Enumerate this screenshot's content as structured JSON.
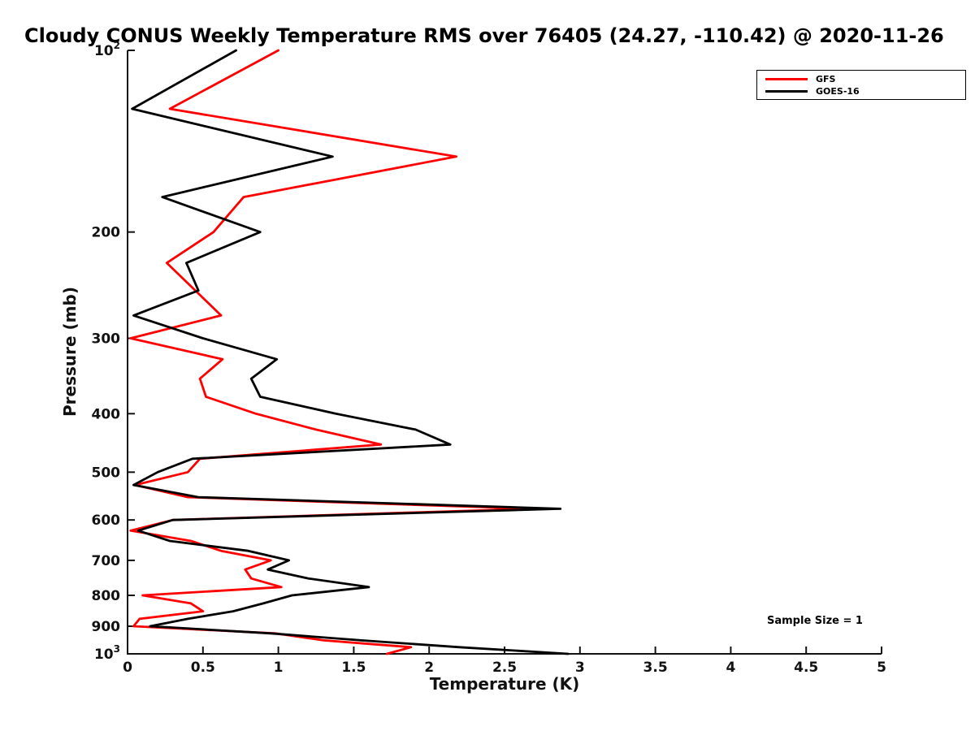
{
  "chart_data": {
    "type": "line",
    "title": "Cloudy CONUS Weekly Temperature RMS over 76405 (24.27, -110.42) @ 2020-11-26",
    "xlabel": "Temperature (K)",
    "ylabel": "Pressure (mb)",
    "xlim": [
      0,
      5
    ],
    "ylim": [
      100,
      1000
    ],
    "yscale": "log",
    "y_axis_direction": "reversed (pressure increases downward)",
    "grid": false,
    "legend_position": "northeast",
    "annotation": "Sample Size = 1",
    "x_ticks": [
      0,
      0.5,
      1,
      1.5,
      2,
      2.5,
      3,
      3.5,
      4,
      4.5,
      5
    ],
    "x_tick_labels": [
      "0",
      "0.5",
      "1",
      "1.5",
      "2",
      "2.5",
      "3",
      "3.5",
      "4",
      "4.5",
      "5"
    ],
    "y_ticks": [
      100,
      200,
      300,
      400,
      500,
      600,
      700,
      800,
      900,
      1000
    ],
    "y_tick_labels": [
      "10^2",
      "200",
      "300",
      "400",
      "500",
      "600",
      "700",
      "800",
      "900",
      "10^3"
    ],
    "pressure_levels_mb": [
      100,
      125,
      150,
      175,
      200,
      225,
      250,
      275,
      300,
      325,
      350,
      375,
      400,
      425,
      450,
      475,
      500,
      525,
      550,
      575,
      600,
      625,
      650,
      675,
      700,
      725,
      750,
      775,
      800,
      825,
      850,
      875,
      900,
      925,
      950,
      975,
      1000
    ],
    "series": [
      {
        "name": "GFS",
        "color": "#ff0000",
        "values": [
          1.0,
          0.28,
          2.18,
          0.77,
          0.57,
          0.26,
          0.45,
          0.62,
          0.02,
          0.63,
          0.48,
          0.52,
          0.85,
          1.25,
          1.68,
          0.48,
          0.4,
          0.05,
          0.4,
          2.68,
          0.3,
          0.02,
          0.42,
          0.62,
          0.95,
          0.78,
          0.82,
          1.02,
          0.1,
          0.42,
          0.5,
          0.08,
          0.04,
          0.98,
          1.3,
          1.88,
          1.72
        ]
      },
      {
        "name": "GOES-16",
        "color": "#000000",
        "values": [
          0.72,
          0.03,
          1.36,
          0.23,
          0.88,
          0.39,
          0.47,
          0.04,
          0.5,
          0.99,
          0.82,
          0.88,
          1.38,
          1.91,
          2.14,
          0.43,
          0.2,
          0.04,
          0.47,
          2.87,
          0.3,
          0.07,
          0.28,
          0.8,
          1.07,
          0.93,
          1.2,
          1.6,
          1.09,
          0.9,
          0.7,
          0.4,
          0.15,
          0.95,
          1.55,
          2.2,
          2.92
        ]
      }
    ]
  }
}
